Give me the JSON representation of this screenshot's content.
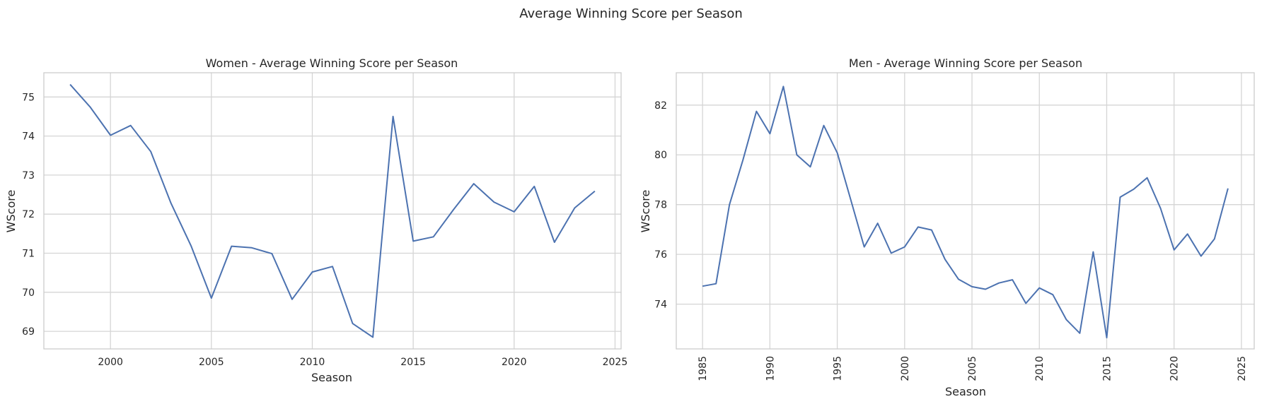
{
  "figure": {
    "suptitle": "Average Winning Score per Season"
  },
  "chart_data": [
    {
      "type": "line",
      "title": "Women - Average Winning Score per Season",
      "xlabel": "Season",
      "ylabel": "WScore",
      "xlim": [
        1996.7,
        2025.3
      ],
      "ylim": [
        68.55,
        75.62
      ],
      "xticks": [
        2000,
        2005,
        2010,
        2015,
        2020,
        2025
      ],
      "yticks": [
        69,
        70,
        71,
        72,
        73,
        74,
        75
      ],
      "xtick_rotation": 0,
      "grid": true,
      "line_color": "#4c72b0",
      "x": [
        1998,
        1999,
        2000,
        2001,
        2002,
        2003,
        2004,
        2005,
        2006,
        2007,
        2008,
        2009,
        2010,
        2011,
        2012,
        2013,
        2014,
        2015,
        2016,
        2017,
        2018,
        2019,
        2020,
        2021,
        2022,
        2023,
        2024
      ],
      "y": [
        75.32,
        74.74,
        74.02,
        74.27,
        73.6,
        72.28,
        71.18,
        69.85,
        71.18,
        71.14,
        70.99,
        69.82,
        70.52,
        70.66,
        69.2,
        68.85,
        74.5,
        71.31,
        71.42,
        72.12,
        72.78,
        72.31,
        72.06,
        72.71,
        71.28,
        72.16,
        72.59
      ]
    },
    {
      "type": "line",
      "title": "Men - Average Winning Score per Season",
      "xlabel": "Season",
      "ylabel": "WScore",
      "xlim": [
        1983.05,
        2025.95
      ],
      "ylim": [
        72.2,
        83.3
      ],
      "xticks": [
        1985,
        1990,
        1995,
        2000,
        2005,
        2010,
        2015,
        2020,
        2025
      ],
      "yticks": [
        74,
        76,
        78,
        80,
        82
      ],
      "xtick_rotation": -90,
      "grid": true,
      "line_color": "#4c72b0",
      "x": [
        1985,
        1986,
        1987,
        1988,
        1989,
        1990,
        1991,
        1992,
        1993,
        1994,
        1995,
        1996,
        1997,
        1998,
        1999,
        2000,
        2001,
        2002,
        2003,
        2004,
        2005,
        2006,
        2007,
        2008,
        2009,
        2010,
        2011,
        2012,
        2013,
        2014,
        2015,
        2016,
        2017,
        2018,
        2019,
        2020,
        2021,
        2022,
        2023,
        2024
      ],
      "y": [
        74.72,
        74.82,
        78.0,
        79.8,
        81.75,
        80.85,
        82.75,
        80.0,
        79.52,
        81.18,
        80.08,
        78.2,
        76.3,
        77.25,
        76.05,
        76.3,
        77.1,
        76.98,
        75.8,
        75.0,
        74.7,
        74.6,
        74.85,
        74.98,
        74.03,
        74.65,
        74.38,
        73.38,
        72.83,
        76.1,
        72.65,
        78.3,
        78.62,
        79.08,
        77.85,
        76.18,
        76.82,
        75.93,
        76.62,
        78.65
      ]
    }
  ]
}
